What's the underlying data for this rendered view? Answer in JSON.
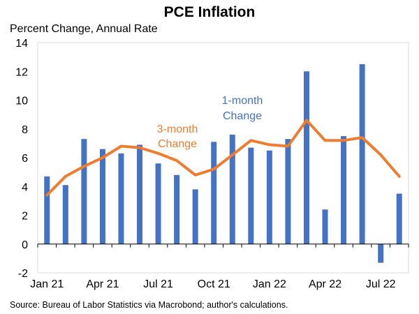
{
  "chart_data": {
    "type": "bar+line",
    "title": "PCE Inflation",
    "subtitle": "Percent Change, Annual Rate",
    "source": "Source: Bureau of Labor Statistics via Macrobond; author's calculations.",
    "ylim": [
      -2,
      14
    ],
    "yticks": [
      -2,
      0,
      2,
      4,
      6,
      8,
      10,
      12,
      14
    ],
    "months": [
      "Jan 21",
      "Feb 21",
      "Mar 21",
      "Apr 21",
      "May 21",
      "Jun 21",
      "Jul 21",
      "Aug 21",
      "Sep 21",
      "Oct 21",
      "Nov 21",
      "Dec 21",
      "Jan 22",
      "Feb 22",
      "Mar 22",
      "Apr 22",
      "May 22",
      "Jun 22",
      "Jul 22",
      "Aug 22"
    ],
    "xtick_labels": [
      {
        "label": "Jan 21",
        "month_index": 0
      },
      {
        "label": "Apr 21",
        "month_index": 3
      },
      {
        "label": "Jul 21",
        "month_index": 6
      },
      {
        "label": "Oct 21",
        "month_index": 9
      },
      {
        "label": "Jan 22",
        "month_index": 12
      },
      {
        "label": "Apr 22",
        "month_index": 15
      },
      {
        "label": "Jul 22",
        "month_index": 18
      }
    ],
    "series": [
      {
        "name": "1-month Change",
        "type": "bar",
        "color": "#4472C4",
        "values": [
          4.7,
          4.1,
          7.3,
          6.6,
          6.3,
          6.9,
          5.6,
          4.8,
          3.8,
          7.1,
          7.6,
          6.7,
          6.5,
          7.3,
          12.0,
          2.4,
          7.5,
          12.5,
          -1.3,
          3.5
        ]
      },
      {
        "name": "3-month Change",
        "type": "line",
        "color": "#ED7D31",
        "values": [
          3.4,
          4.7,
          5.4,
          6.0,
          6.8,
          6.7,
          6.3,
          5.8,
          4.8,
          5.2,
          6.2,
          7.2,
          6.9,
          6.8,
          8.6,
          7.2,
          7.2,
          7.4,
          6.2,
          4.7
        ]
      }
    ],
    "annotations": {
      "one_month": [
        "1-month",
        "Change"
      ],
      "three_month": [
        "3-month",
        "Change"
      ]
    }
  }
}
